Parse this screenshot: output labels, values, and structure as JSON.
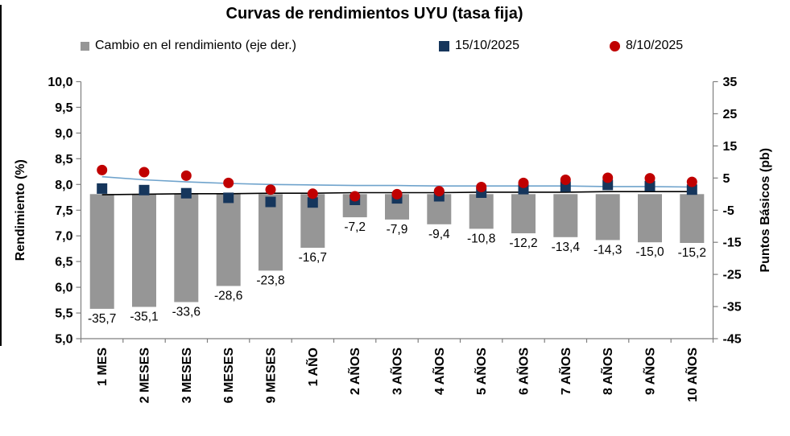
{
  "chart_data": {
    "type": "combo",
    "title": "Curvas de rendimientos UYU (tasa fija)",
    "categories": [
      "1 MES",
      "2 MESES",
      "3 MESES",
      "6 MESES",
      "9 MESES",
      "1 AÑO",
      "2 AÑOS",
      "3 AÑOS",
      "4 AÑOS",
      "5 AÑOS",
      "6 AÑOS",
      "7 AÑOS",
      "8 AÑOS",
      "9 AÑOS",
      "10 AÑOS"
    ],
    "series": [
      {
        "name": "Cambio en el rendimiento (eje der.)",
        "type": "bar",
        "axis": "right",
        "color": "#969696",
        "values": [
          -35.7,
          -35.1,
          -33.6,
          -28.6,
          -23.8,
          -16.7,
          -7.2,
          -7.9,
          -9.4,
          -10.8,
          -12.2,
          -13.4,
          -14.3,
          -15.0,
          -15.2
        ],
        "labels": [
          "-35,7",
          "-35,1",
          "-33,6",
          "-28,6",
          "-23,8",
          "-16,7",
          "-7,2",
          "-7,9",
          "-9,4",
          "-10,8",
          "-12,2",
          "-13,4",
          "-14,3",
          "-15,0",
          "-15,2"
        ]
      },
      {
        "name": "15/10/2025",
        "type": "scatter-square",
        "axis": "left",
        "color": "#16365C",
        "values": [
          7.92,
          7.89,
          7.83,
          7.74,
          7.66,
          7.65,
          7.7,
          7.73,
          7.77,
          7.84,
          7.91,
          7.96,
          7.99,
          7.97,
          7.9
        ]
      },
      {
        "name": "8/10/2025",
        "type": "scatter-circle",
        "axis": "left",
        "color": "#C00000",
        "values": [
          8.28,
          8.24,
          8.17,
          8.03,
          7.9,
          7.82,
          7.77,
          7.81,
          7.87,
          7.95,
          8.03,
          8.09,
          8.13,
          8.12,
          8.05
        ]
      }
    ],
    "fitted_lines": [
      {
        "id": "curve-15-10-2025",
        "color": "#000000",
        "values": [
          7.8,
          7.81,
          7.82,
          7.82,
          7.83,
          7.83,
          7.84,
          7.84,
          7.84,
          7.85,
          7.85,
          7.85,
          7.86,
          7.86,
          7.86
        ]
      },
      {
        "id": "curve-8-10-2025",
        "color": "#6FA3CC",
        "values": [
          8.15,
          8.09,
          8.05,
          8.02,
          8.0,
          7.99,
          7.98,
          7.98,
          7.97,
          7.97,
          7.97,
          7.97,
          7.96,
          7.96,
          7.95
        ]
      }
    ],
    "left_axis": {
      "title": "Rendimiento (%)",
      "min": 5.0,
      "max": 10.0,
      "step": 0.5,
      "tick_labels": [
        "10,0",
        "9,5",
        "9,0",
        "8,5",
        "8,0",
        "7,5",
        "7,0",
        "6,5",
        "6,0",
        "5,5",
        "5,0"
      ]
    },
    "right_axis": {
      "title": "Puntos Básicos (pb)",
      "min": -45,
      "max": 35,
      "step": 10,
      "tick_labels": [
        "35",
        "25",
        "15",
        "5",
        "-5",
        "-15",
        "-25",
        "-35",
        "-45"
      ]
    },
    "legend_position": "top",
    "grid": false,
    "axis_color": "#7F7F7F"
  }
}
